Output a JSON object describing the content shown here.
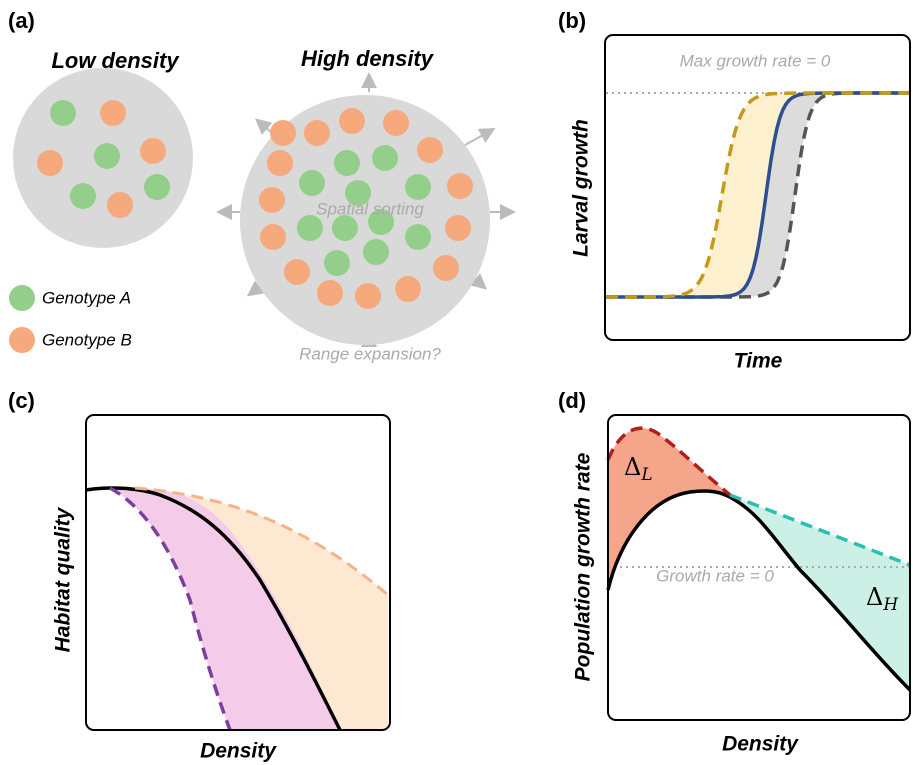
{
  "panel_a": {
    "label": "(a)",
    "low_title": "Low density",
    "high_title": "High density",
    "center_text": "Spatial sorting",
    "legend": [
      "Genotype A",
      "Genotype B"
    ],
    "footnote": "Range expansion?"
  },
  "panel_b": {
    "label": "(b)",
    "annotation": "Max growth rate = 0",
    "y_label": "Larval growth",
    "x_label": "Time"
  },
  "panel_c": {
    "label": "(c)",
    "y_label": "Habitat quality",
    "x_label": "Density"
  },
  "panel_d": {
    "label": "(d)",
    "y_label": "Population growth rate",
    "x_label": "Density",
    "annotation": "Growth rate = 0",
    "delta_low": {
      "symbol": "Δ",
      "subscript": "L"
    },
    "delta_high": {
      "symbol": "Δ",
      "subscript": "H"
    }
  }
}
